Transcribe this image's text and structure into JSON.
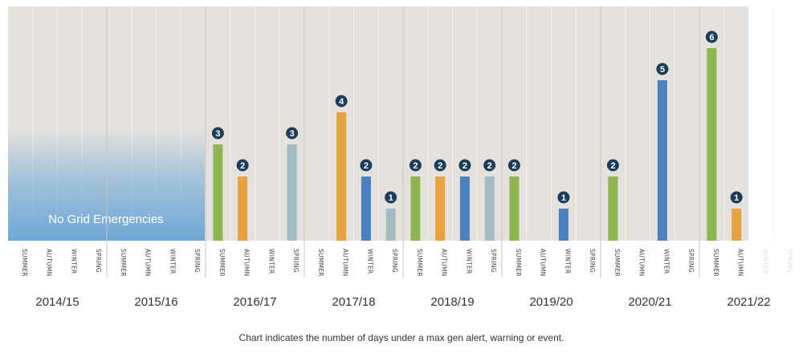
{
  "chart_data": {
    "type": "bar",
    "years": [
      "2014/15",
      "2015/16",
      "2016/17",
      "2017/18",
      "2018/19",
      "2019/20",
      "2020/21",
      "2021/22"
    ],
    "seasons": [
      "SUMMER",
      "AUTUMN",
      "WINTER",
      "SPRING"
    ],
    "season_colors": {
      "SUMMER": "#8db650",
      "AUTUMN": "#e8a23f",
      "WINTER": "#4a82c0",
      "SPRING": "#a3bcc4"
    },
    "values": [
      [
        0,
        0,
        0,
        0
      ],
      [
        0,
        0,
        0,
        0
      ],
      [
        3,
        2,
        0,
        3
      ],
      [
        0,
        4,
        2,
        1
      ],
      [
        2,
        2,
        2,
        2
      ],
      [
        2,
        0,
        1,
        0
      ],
      [
        2,
        0,
        5,
        0
      ],
      [
        6,
        1,
        null,
        null
      ]
    ],
    "ylim": [
      0,
      7
    ],
    "annotation": "No Grid Emergencies",
    "caption": "Chart indicates the number of days under a max gen alert, warning or event.",
    "colors": {
      "panel": "#e5e2de",
      "gridline": "#f7f5f3",
      "divider": "#c9c5c0",
      "badge": "#1d3c5a",
      "faded_label": "#dddddd",
      "blue_fade": "#6fa8d6"
    }
  }
}
